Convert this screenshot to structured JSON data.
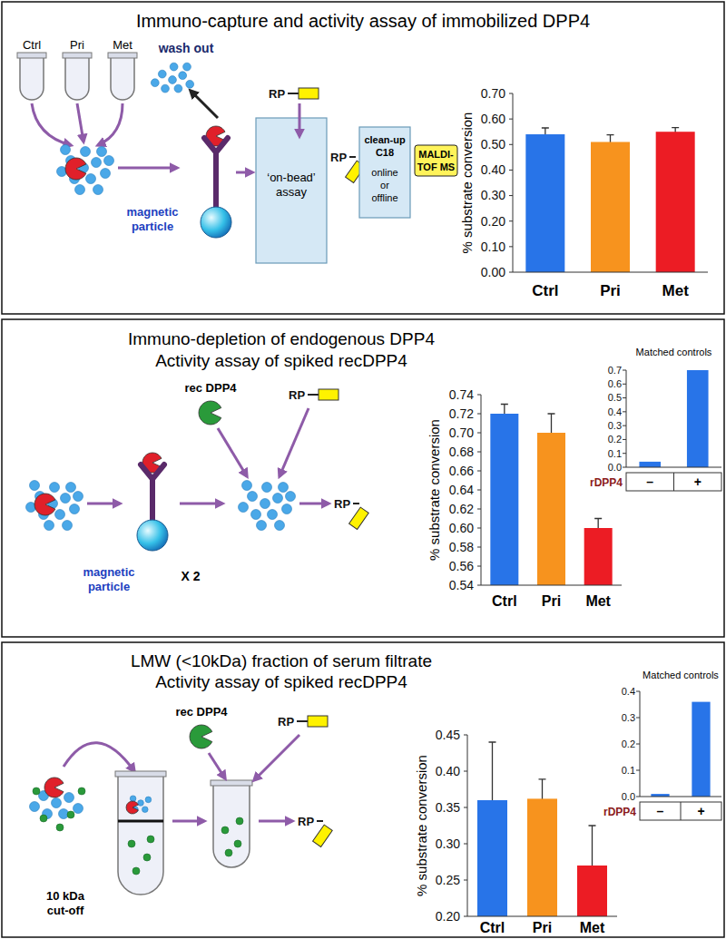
{
  "chart_data": [
    {
      "type": "bar",
      "categories": [
        "Ctrl",
        "Pri",
        "Met"
      ],
      "values": [
        0.54,
        0.51,
        0.55
      ],
      "errors": [
        0.025,
        0.028,
        0.016
      ],
      "colors": [
        "#2874e8",
        "#f7931e",
        "#ec1c24"
      ],
      "ylabel": "% substrate conversion",
      "ylim": [
        0,
        0.7
      ],
      "yticks": [
        {
          "value": 0,
          "label": "0.00"
        },
        {
          "value": 0.1,
          "label": "0.10"
        },
        {
          "value": 0.2,
          "label": "0.20"
        },
        {
          "value": 0.3,
          "label": "0.30"
        },
        {
          "value": 0.4,
          "label": "0.40"
        },
        {
          "value": 0.5,
          "label": "0.50"
        },
        {
          "value": 0.6,
          "label": "0.60"
        },
        {
          "value": 0.7,
          "label": "0.70"
        }
      ]
    },
    {
      "type": "bar",
      "categories": [
        "Ctrl",
        "Pri",
        "Met"
      ],
      "values": [
        0.72,
        0.7,
        0.6
      ],
      "errors": [
        0.01,
        0.02,
        0.01
      ],
      "colors": [
        "#2874e8",
        "#f7931e",
        "#ec1c24"
      ],
      "ylabel": "% substrate conversion",
      "ylim": [
        0.54,
        0.74
      ],
      "yticks": [
        0.54,
        0.56,
        0.58,
        {
          "value": 0.6,
          "label": "0.60"
        },
        0.62,
        0.64,
        0.66,
        0.68,
        {
          "value": 0.7,
          "label": "0.70"
        },
        0.72,
        0.74
      ]
    },
    {
      "type": "bar",
      "title": "Matched controls",
      "categories": [
        "–",
        "+"
      ],
      "xlabel": "rDPP4",
      "values": [
        0.04,
        0.7
      ],
      "color": "#2874e8",
      "ylim": [
        0,
        0.7
      ],
      "yticks": [
        {
          "value": 0,
          "label": "0.0"
        },
        0.1,
        0.2,
        0.3,
        0.4,
        0.5,
        0.6,
        0.7
      ]
    },
    {
      "type": "bar",
      "categories": [
        "Ctrl",
        "Pri",
        "Met"
      ],
      "values": [
        0.36,
        0.362,
        0.27
      ],
      "errors": [
        0.08,
        0.027,
        0.055
      ],
      "colors": [
        "#2874e8",
        "#f7931e",
        "#ec1c24"
      ],
      "ylabel": "% substrate conversion",
      "ylim": [
        0.2,
        0.45
      ],
      "yticks": [
        {
          "value": 0.2,
          "label": "0.20"
        },
        0.25,
        {
          "value": 0.3,
          "label": "0.30"
        },
        0.35,
        {
          "value": 0.4,
          "label": "0.40"
        },
        0.45
      ]
    },
    {
      "type": "bar",
      "title": "Matched controls",
      "categories": [
        "–",
        "+"
      ],
      "xlabel": "rDPP4",
      "values": [
        0.01,
        0.36
      ],
      "color": "#2874e8",
      "ylim": [
        0,
        0.4
      ],
      "yticks": [
        {
          "value": 0,
          "label": "0.0"
        },
        0.1,
        0.2,
        0.3,
        0.4
      ]
    }
  ],
  "panels": [
    {
      "title": [
        "Immuno-capture and activity assay of immobilized DPP4"
      ],
      "tubes": [
        "Ctrl",
        "Pri",
        "Met"
      ],
      "wash_out": "wash out",
      "particle": [
        "magnetic",
        "particle"
      ],
      "substrate": "RP",
      "product": "RP",
      "assay": [
        "‘on-bead’",
        "assay"
      ],
      "cleanup": [
        "clean-up",
        "C18",
        "online",
        "or",
        "offline"
      ],
      "ms": [
        "MALDI-",
        "TOF MS"
      ]
    },
    {
      "title": [
        "Immuno-depletion of endogenous DPP4",
        "Activity assay of spiked recDPP4"
      ],
      "enzyme": "rec DPP4",
      "substrate": "RP",
      "product": "RP",
      "particle": [
        "magnetic",
        "particle"
      ],
      "repeat": "X 2"
    },
    {
      "title": [
        "LMW (<10kDa) fraction of serum filtrate",
        "Activity assay of spiked recDPP4"
      ],
      "enzyme": "rec DPP4",
      "substrate": "RP",
      "product": "RP",
      "filter": [
        "10 kDa",
        "cut-off"
      ]
    }
  ]
}
